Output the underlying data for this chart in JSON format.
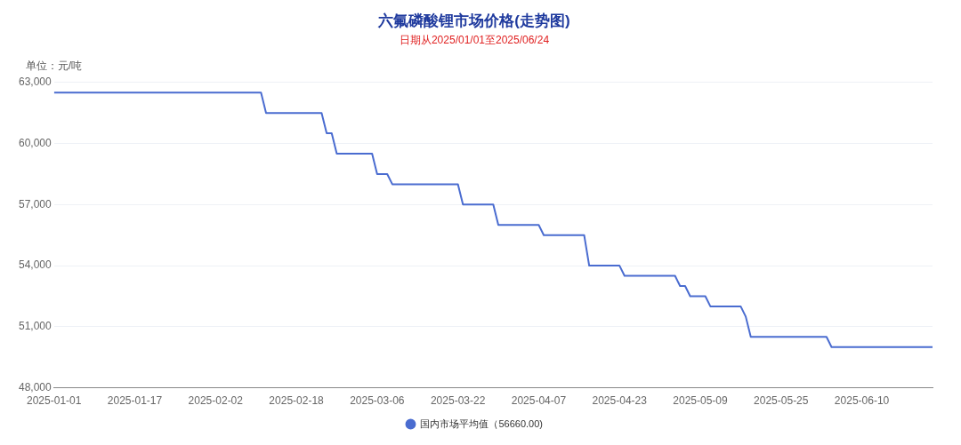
{
  "chart_data": {
    "type": "line",
    "title": "六氟磷酸锂市场价格(走势图)",
    "subtitle": "日期从2025/01/01至2025/06/24",
    "ylabel": "单位：元/吨",
    "x": [
      "2025-01-01",
      "2025-02-11",
      "2025-02-12",
      "2025-02-23",
      "2025-02-24",
      "2025-02-25",
      "2025-02-26",
      "2025-03-05",
      "2025-03-06",
      "2025-03-08",
      "2025-03-09",
      "2025-03-22",
      "2025-03-23",
      "2025-03-29",
      "2025-03-30",
      "2025-04-07",
      "2025-04-08",
      "2025-04-16",
      "2025-04-17",
      "2025-04-23",
      "2025-04-24",
      "2025-05-04",
      "2025-05-05",
      "2025-05-06",
      "2025-05-07",
      "2025-05-10",
      "2025-05-11",
      "2025-05-17",
      "2025-05-18",
      "2025-05-19",
      "2025-06-03",
      "2025-06-04",
      "2025-06-24"
    ],
    "series": [
      {
        "name": "国内市场平均值（56660.00)",
        "color": "#4a6cd0",
        "values": [
          62500,
          62500,
          61500,
          61500,
          60500,
          60500,
          59500,
          59500,
          58500,
          58500,
          58000,
          58000,
          57000,
          57000,
          56000,
          56000,
          55500,
          55500,
          54000,
          54000,
          53500,
          53500,
          53000,
          53000,
          52500,
          52500,
          52000,
          52000,
          51500,
          50500,
          50500,
          50000,
          50000
        ]
      }
    ],
    "xlim": [
      "2025-01-01",
      "2025-06-24"
    ],
    "xticks": [
      "2025-01-01",
      "2025-01-17",
      "2025-02-02",
      "2025-02-18",
      "2025-03-06",
      "2025-03-22",
      "2025-04-07",
      "2025-04-23",
      "2025-05-09",
      "2025-05-25",
      "2025-06-10"
    ],
    "ylim": [
      48000,
      63000
    ],
    "yticks": [
      {
        "value": 48000,
        "label": "48,000"
      },
      {
        "value": 51000,
        "label": "51,000"
      },
      {
        "value": 54000,
        "label": "54,000"
      },
      {
        "value": 57000,
        "label": "57,000"
      },
      {
        "value": 60000,
        "label": "60,000"
      },
      {
        "value": 63000,
        "label": "63,000"
      }
    ],
    "grid": "y",
    "legend": "bottom",
    "marker": "none",
    "line_style": "solid"
  }
}
